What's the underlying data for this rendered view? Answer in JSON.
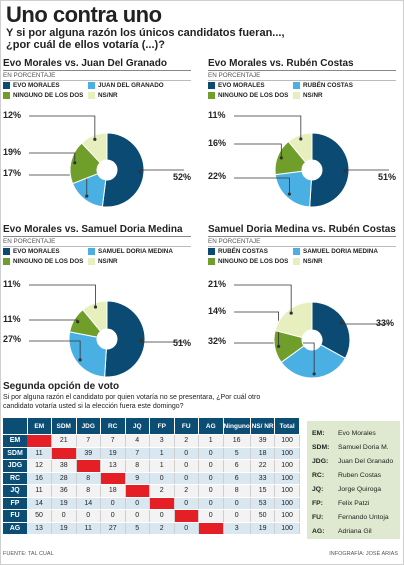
{
  "title": "Uno contra uno",
  "question": [
    "Y si por alguna razón los únicos candidatos fueran...,",
    "¿por cuál de ellos votaría (...)?"
  ],
  "colors": {
    "a": "#0b4a72",
    "b": "#4ab0e4",
    "none": "#6f9e2a",
    "nsnr": "#e8efbf",
    "red": "#e41f26"
  },
  "charts": [
    {
      "title": "Evo Morales vs. Juan Del Granado",
      "subtitle": "EN PORCENTAJE",
      "legend": [
        "EVO MORALES",
        "JUAN DEL GRANADO",
        "NINGUNO DE LOS DOS",
        "NS/NR"
      ],
      "labels": [
        "52%",
        "17%",
        "19%",
        "12%"
      ]
    },
    {
      "title": "Evo Morales vs. Rubén Costas",
      "subtitle": "EN PORCENTAJE",
      "legend": [
        "EVO MORALES",
        "RUBÉN COSTAS",
        "NINGUNO DE LOS DOS",
        "NS/NR"
      ],
      "labels": [
        "51%",
        "22%",
        "16%",
        "11%"
      ]
    },
    {
      "title": "Evo Morales vs. Samuel Doria Medina",
      "subtitle": "EN PORCENTAJE",
      "legend": [
        "EVO MORALES",
        "SAMUEL DORIA MEDINA",
        "NINGUNO DE LOS DOS",
        "NS/NR"
      ],
      "labels": [
        "51%",
        "27%",
        "11%",
        "11%"
      ]
    },
    {
      "title": "Samuel Doria Medina vs. Rubén Costas",
      "subtitle": "EN PORCENTAJE",
      "legend": [
        "RUBÉN COSTAS",
        "SAMUEL DORIA MEDINA",
        "NINGUNO DE LOS DOS",
        "NS/NR"
      ],
      "labels": [
        "33%",
        "32%",
        "14%",
        "21%"
      ]
    }
  ],
  "chart_data": [
    {
      "type": "pie",
      "title": "Evo Morales vs. Juan Del Granado",
      "categories": [
        "Evo Morales",
        "Juan Del Granado",
        "Ninguno de los dos",
        "NS/NR"
      ],
      "values": [
        52,
        17,
        19,
        12
      ]
    },
    {
      "type": "pie",
      "title": "Evo Morales vs. Rubén Costas",
      "categories": [
        "Evo Morales",
        "Rubén Costas",
        "Ninguno de los dos",
        "NS/NR"
      ],
      "values": [
        51,
        22,
        16,
        11
      ]
    },
    {
      "type": "pie",
      "title": "Evo Morales vs. Samuel Doria Medina",
      "categories": [
        "Evo Morales",
        "Samuel Doria Medina",
        "Ninguno de los dos",
        "NS/NR"
      ],
      "values": [
        51,
        27,
        11,
        11
      ]
    },
    {
      "type": "pie",
      "title": "Samuel Doria Medina vs. Rubén Costas",
      "categories": [
        "Rubén Costas",
        "Samuel Doria Medina",
        "Ninguno de los dos",
        "NS/NR"
      ],
      "values": [
        33,
        32,
        14,
        21
      ]
    },
    {
      "type": "table",
      "title": "Segunda opción de voto",
      "columns": [
        "EM",
        "SDM",
        "JDG",
        "RC",
        "JQ",
        "FP",
        "FU",
        "AG",
        "Ninguno",
        "NS/ NR",
        "Total"
      ],
      "rows": [
        {
          "label": "EM",
          "values": [
            "",
            "21",
            "7",
            "7",
            "4",
            "3",
            "2",
            "1",
            "16",
            "39",
            "100"
          ]
        },
        {
          "label": "SDM",
          "values": [
            "11",
            "",
            "39",
            "19",
            "7",
            "1",
            "0",
            "0",
            "5",
            "18",
            "100"
          ]
        },
        {
          "label": "JDG",
          "values": [
            "12",
            "38",
            "",
            "13",
            "8",
            "1",
            "0",
            "0",
            "6",
            "22",
            "100"
          ]
        },
        {
          "label": "RC",
          "values": [
            "16",
            "28",
            "8",
            "",
            "9",
            "0",
            "0",
            "0",
            "6",
            "33",
            "100"
          ]
        },
        {
          "label": "JQ",
          "values": [
            "11",
            "36",
            "8",
            "18",
            "",
            "2",
            "2",
            "0",
            "8",
            "15",
            "100"
          ]
        },
        {
          "label": "FP",
          "values": [
            "14",
            "19",
            "14",
            "0",
            "0",
            "",
            "0",
            "0",
            "0",
            "53",
            "100"
          ]
        },
        {
          "label": "FU",
          "values": [
            "50",
            "0",
            "0",
            "0",
            "0",
            "0",
            "",
            "0",
            "0",
            "50",
            "100"
          ]
        },
        {
          "label": "AG",
          "values": [
            "13",
            "19",
            "11",
            "27",
            "5",
            "2",
            "0",
            "",
            "3",
            "19",
            "100"
          ]
        }
      ]
    }
  ],
  "second": {
    "title": "Segunda opción de voto",
    "subtitle": "Si por alguna razón el candidato por quien votaría no se presentara, ¿Por cuál otro candidato votaría usted si la elección fuera este domingo?"
  },
  "key": [
    {
      "abbr": "EM:",
      "name": "Evo Morales"
    },
    {
      "abbr": "SDM:",
      "name": "Samuel Doria M."
    },
    {
      "abbr": "JDG:",
      "name": "Juan Del Granado"
    },
    {
      "abbr": "RC:",
      "name": "Ruben Costas"
    },
    {
      "abbr": "JQ:",
      "name": "Jorge Quiroga"
    },
    {
      "abbr": "FP:",
      "name": "Felix Patzi"
    },
    {
      "abbr": "FU:",
      "name": "Fernando Untoja"
    },
    {
      "abbr": "AG:",
      "name": "Adriana Gil"
    }
  ],
  "footer": {
    "source": "FUENTE: TAL CUAL",
    "credit": "INFOGRAFÍA: JOSÉ ARIAS"
  }
}
